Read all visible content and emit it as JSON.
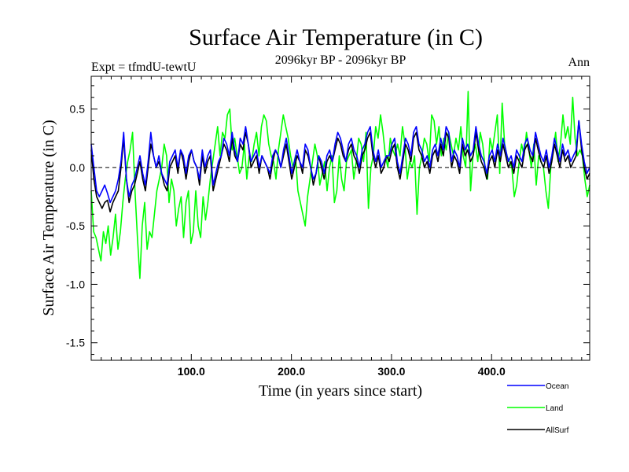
{
  "chart_data": {
    "type": "line",
    "title": "Surface Air Temperature (in C)",
    "subtitle": "2096kyr BP - 2096kyr BP",
    "experiment": "Expt = tfmdU-tewtU",
    "season": "Ann",
    "xlabel": "Time (in years since start)",
    "ylabel": "Surface Air Temperature (in C)",
    "xlim": [
      0,
      498
    ],
    "ylim": [
      -1.65,
      0.78
    ],
    "xticks": [
      {
        "value": 100,
        "label": "100.0"
      },
      {
        "value": 200,
        "label": "200.0"
      },
      {
        "value": 300,
        "label": "300.0"
      },
      {
        "value": 400,
        "label": "400.0"
      }
    ],
    "yticks": [
      {
        "value": 0.5,
        "label": "0.5"
      },
      {
        "value": 0.0,
        "label": "0.0"
      },
      {
        "value": -0.5,
        "label": "-0.5"
      },
      {
        "value": -1.0,
        "label": "-1.0"
      },
      {
        "value": -1.5,
        "label": "-1.5"
      }
    ],
    "reference_line": 0.0,
    "series": [
      {
        "name": "Land",
        "color": "#00ff00",
        "values": [
          -0.2,
          -0.55,
          -0.6,
          -0.7,
          -0.8,
          -0.55,
          -0.65,
          -0.5,
          -0.75,
          -0.6,
          -0.4,
          -0.7,
          -0.55,
          -0.3,
          -0.1,
          0.05,
          0.15,
          0.3,
          -0.2,
          -0.6,
          -0.95,
          -0.5,
          -0.3,
          -0.7,
          -0.55,
          -0.6,
          -0.4,
          -0.2,
          -0.1,
          0.0,
          0.2,
          0.1,
          -0.3,
          -0.1,
          -0.2,
          -0.5,
          -0.35,
          -0.25,
          -0.6,
          -0.3,
          -0.2,
          -0.65,
          -0.55,
          -0.2,
          -0.5,
          -0.6,
          -0.25,
          -0.45,
          -0.3,
          -0.1,
          0.05,
          0.2,
          0.35,
          0.1,
          0.3,
          0.25,
          0.45,
          0.5,
          0.15,
          0.25,
          0.1,
          -0.05,
          0.0,
          0.2,
          -0.1,
          0.1,
          0.05,
          0.2,
          0.3,
          0.1,
          0.35,
          0.45,
          0.4,
          0.2,
          0.1,
          0.05,
          -0.1,
          0.15,
          0.3,
          0.45,
          0.35,
          0.25,
          0.1,
          0.0,
          0.1,
          -0.2,
          -0.3,
          -0.4,
          -0.5,
          -0.25,
          -0.1,
          0.05,
          0.2,
          0.1,
          -0.15,
          -0.05,
          0.05,
          -0.2,
          0.0,
          0.1,
          -0.3,
          -0.2,
          0.1,
          -0.1,
          -0.2,
          0.05,
          0.1,
          0.15,
          -0.1,
          0.05,
          0.25,
          0.2,
          0.05,
          0.3,
          -0.35,
          0.0,
          0.1,
          0.35,
          0.25,
          0.45,
          0.3,
          0.1,
          0.0,
          0.25,
          0.15,
          0.1,
          0.2,
          0.1,
          0.35,
          0.2,
          -0.1,
          0.05,
          0.0,
          0.1,
          -0.4,
          0.0,
          0.1,
          0.25,
          0.2,
          0.05,
          0.45,
          0.4,
          0.2,
          0.35,
          0.1,
          0.25,
          0.15,
          0.3,
          0.2,
          0.1,
          0.25,
          0.15,
          0.35,
          0.1,
          0.0,
          0.65,
          -0.2,
          0.1,
          0.2,
          0.05,
          0.3,
          0.2,
          0.0,
          -0.1,
          0.25,
          0.15,
          0.3,
          0.45,
          -0.05,
          0.55,
          0.2,
          0.1,
          0.05,
          0.0,
          -0.25,
          -0.15,
          0.05,
          0.2,
          0.1,
          0.3,
          0.15,
          0.0,
          0.2,
          -0.15,
          0.1,
          0.05,
          0.0,
          -0.2,
          -0.35,
          0.0,
          0.15,
          0.3,
          0.05,
          0.2,
          0.45,
          0.25,
          0.35,
          0.2,
          0.6,
          0.25,
          0.1,
          0.15,
          0.1,
          -0.1,
          -0.25,
          -0.15
        ]
      },
      {
        "name": "AllSurf",
        "color": "#000000",
        "values": [
          0.15,
          -0.1,
          -0.25,
          -0.3,
          -0.35,
          -0.3,
          -0.28,
          -0.38,
          -0.3,
          -0.25,
          -0.2,
          0.0,
          0.25,
          -0.1,
          -0.3,
          -0.2,
          -0.15,
          -0.05,
          0.05,
          -0.1,
          -0.2,
          0.0,
          0.2,
          0.1,
          0.0,
          0.05,
          -0.05,
          -0.15,
          -0.2,
          0.0,
          0.05,
          0.1,
          -0.05,
          0.15,
          0.05,
          -0.1,
          0.05,
          0.15,
          0.05,
          0.0,
          -0.15,
          0.1,
          -0.05,
          0.05,
          0.1,
          -0.2,
          -0.1,
          0.0,
          0.1,
          0.2,
          0.15,
          0.05,
          0.25,
          0.1,
          0.05,
          0.2,
          0.15,
          0.3,
          0.2,
          0.0,
          0.05,
          0.1,
          -0.05,
          0.1,
          0.05,
          0.0,
          -0.1,
          0.05,
          0.15,
          0.1,
          0.0,
          0.1,
          0.2,
          0.05,
          -0.1,
          0.0,
          0.1,
          0.05,
          -0.05,
          0.15,
          0.1,
          0.0,
          -0.15,
          -0.05,
          0.1,
          0.0,
          -0.1,
          0.05,
          0.1,
          0.05,
          0.15,
          0.25,
          0.2,
          0.1,
          0.05,
          0.15,
          0.2,
          0.1,
          0.05,
          -0.05,
          0.1,
          0.15,
          0.25,
          0.3,
          0.1,
          0.0,
          0.1,
          -0.05,
          0.0,
          0.1,
          0.05,
          0.15,
          0.2,
          0.0,
          -0.1,
          0.05,
          0.2,
          0.15,
          0.05,
          0.25,
          0.3,
          0.15,
          0.1,
          0.0,
          0.05,
          -0.05,
          0.1,
          0.15,
          0.05,
          0.2,
          0.1,
          0.3,
          0.25,
          0.0,
          0.1,
          0.05,
          -0.05,
          0.2,
          0.1,
          0.15,
          0.05,
          0.1,
          0.3,
          0.15,
          0.05,
          0.0,
          -0.1,
          0.05,
          0.1,
          0.0,
          0.15,
          0.05,
          0.2,
          0.1,
          0.0,
          0.05,
          -0.05,
          0.1,
          0.05,
          0.0,
          0.15,
          0.2,
          0.1,
          0.05,
          0.25,
          0.15,
          0.05,
          0.0,
          0.1,
          -0.05,
          0.05,
          0.2,
          0.1,
          0.0,
          0.15,
          0.05,
          0.1,
          0.0,
          0.05,
          0.1,
          0.4,
          0.15,
          0.0,
          -0.1,
          -0.05
        ]
      },
      {
        "name": "Ocean",
        "color": "#0000ff",
        "values": [
          0.2,
          0.0,
          -0.2,
          -0.25,
          -0.2,
          -0.15,
          -0.22,
          -0.3,
          -0.25,
          -0.2,
          -0.1,
          0.05,
          0.3,
          -0.1,
          -0.25,
          -0.15,
          -0.1,
          0.0,
          0.1,
          -0.05,
          -0.15,
          0.05,
          0.3,
          0.1,
          0.0,
          0.1,
          -0.05,
          -0.1,
          -0.15,
          0.05,
          0.1,
          0.15,
          0.0,
          0.15,
          0.1,
          -0.05,
          0.1,
          0.15,
          0.05,
          0.0,
          -0.1,
          0.15,
          0.0,
          0.1,
          0.15,
          -0.15,
          -0.05,
          0.05,
          0.1,
          0.25,
          0.2,
          0.1,
          0.3,
          0.15,
          0.05,
          0.25,
          0.2,
          0.35,
          0.2,
          0.05,
          0.1,
          0.15,
          0.0,
          0.1,
          0.05,
          0.0,
          -0.05,
          0.1,
          0.15,
          0.1,
          0.0,
          0.15,
          0.25,
          0.1,
          -0.05,
          0.05,
          0.15,
          0.05,
          0.0,
          0.2,
          0.15,
          0.0,
          -0.1,
          -0.05,
          0.1,
          0.05,
          -0.05,
          0.1,
          0.15,
          0.05,
          0.2,
          0.3,
          0.25,
          0.15,
          0.05,
          0.2,
          0.25,
          0.15,
          0.1,
          0.0,
          0.15,
          0.2,
          0.3,
          0.35,
          0.15,
          0.05,
          0.15,
          0.0,
          0.05,
          0.1,
          0.1,
          0.2,
          0.25,
          0.05,
          -0.05,
          0.1,
          0.25,
          0.2,
          0.1,
          0.3,
          0.35,
          0.2,
          0.15,
          0.05,
          0.1,
          0.0,
          0.15,
          0.2,
          0.1,
          0.25,
          0.15,
          0.35,
          0.3,
          0.05,
          0.15,
          0.1,
          0.0,
          0.25,
          0.15,
          0.2,
          0.1,
          0.15,
          0.35,
          0.2,
          0.1,
          0.05,
          -0.05,
          0.1,
          0.15,
          0.05,
          0.2,
          0.1,
          0.25,
          0.15,
          0.05,
          0.1,
          0.0,
          0.15,
          0.1,
          0.05,
          0.2,
          0.25,
          0.15,
          0.1,
          0.3,
          0.2,
          0.1,
          0.05,
          0.15,
          0.0,
          0.1,
          0.25,
          0.15,
          0.05,
          0.2,
          0.1,
          0.15,
          0.05,
          0.1,
          0.15,
          0.4,
          0.2,
          0.05,
          -0.05,
          0.0
        ]
      }
    ],
    "legend": [
      {
        "label": "Ocean",
        "color": "#0000ff"
      },
      {
        "label": "Land",
        "color": "#00ff00"
      },
      {
        "label": "AllSurf",
        "color": "#000000"
      }
    ]
  }
}
